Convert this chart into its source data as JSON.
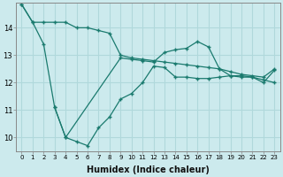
{
  "xlabel": "Humidex (Indice chaleur)",
  "background_color": "#cceaed",
  "grid_color": "#b0d8db",
  "line_color": "#1a7a6e",
  "x_ticks": [
    0,
    1,
    2,
    3,
    4,
    5,
    6,
    7,
    8,
    9,
    10,
    11,
    12,
    13,
    14,
    15,
    16,
    17,
    18,
    19,
    20,
    21,
    22,
    23
  ],
  "y_ticks": [
    10,
    11,
    12,
    13,
    14
  ],
  "ylim": [
    9.5,
    14.9
  ],
  "xlim": [
    -0.5,
    23.5
  ],
  "series": [
    {
      "x": [
        0,
        1,
        2,
        3,
        4,
        5,
        6,
        7,
        8,
        9,
        10,
        11,
        12,
        13,
        14,
        15,
        16,
        17,
        18,
        19,
        20,
        21,
        22,
        23
      ],
      "y": [
        14.85,
        14.2,
        14.2,
        14.2,
        14.2,
        14.0,
        14.0,
        13.9,
        13.8,
        13.0,
        12.9,
        12.85,
        12.8,
        12.75,
        12.7,
        12.65,
        12.6,
        12.55,
        12.5,
        12.4,
        12.3,
        12.25,
        12.2,
        12.5
      ]
    },
    {
      "x": [
        0,
        1,
        2,
        3,
        4,
        9,
        10,
        11,
        12,
        13,
        14,
        15,
        16,
        17,
        18,
        19,
        20,
        21,
        22,
        23
      ],
      "y": [
        14.85,
        14.2,
        13.4,
        11.1,
        10.0,
        12.9,
        12.85,
        12.8,
        12.75,
        13.1,
        13.2,
        13.25,
        13.5,
        13.3,
        12.5,
        12.25,
        12.2,
        12.2,
        12.0,
        12.45
      ]
    },
    {
      "x": [
        3,
        4,
        5,
        6,
        7,
        8,
        9,
        10,
        11,
        12,
        13,
        14,
        15,
        16,
        17,
        18,
        19,
        20,
        21,
        22,
        23
      ],
      "y": [
        11.1,
        10.0,
        9.85,
        9.7,
        10.35,
        10.75,
        11.4,
        11.6,
        12.0,
        12.6,
        12.55,
        12.2,
        12.2,
        12.15,
        12.15,
        12.2,
        12.25,
        12.25,
        12.2,
        12.1,
        12.0
      ]
    }
  ]
}
